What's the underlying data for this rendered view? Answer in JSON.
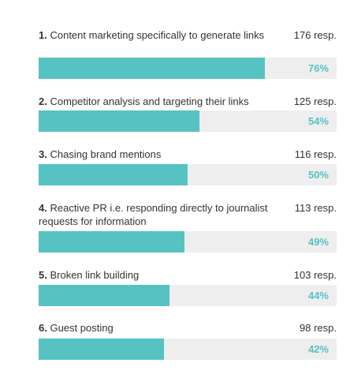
{
  "chart_data": {
    "type": "bar",
    "orientation": "horizontal",
    "title": "",
    "xlabel": "",
    "ylabel": "",
    "xlim": [
      0,
      100
    ],
    "unit": "%",
    "items": [
      {
        "rank": "1.",
        "label": "Content marketing specifically to generate links",
        "responses": "176 resp.",
        "value": 76,
        "value_label": "76%"
      },
      {
        "rank": "2.",
        "label": "Competitor analysis and targeting their links",
        "responses": "125 resp.",
        "value": 54,
        "value_label": "54%"
      },
      {
        "rank": "3.",
        "label": "Chasing brand mentions",
        "responses": "116 resp.",
        "value": 50,
        "value_label": "50%"
      },
      {
        "rank": "4.",
        "label": "Reactive PR i.e. responding directly to journalist requests for information",
        "responses": "113 resp.",
        "value": 49,
        "value_label": "49%"
      },
      {
        "rank": "5.",
        "label": "Broken link building",
        "responses": "103 resp.",
        "value": 44,
        "value_label": "44%"
      },
      {
        "rank": "6.",
        "label": "Guest posting",
        "responses": "98 resp.",
        "value": 42,
        "value_label": "42%"
      }
    ]
  },
  "colors": {
    "bar": "#56c2c2",
    "track": "#eeeeee",
    "text": "#333333"
  }
}
